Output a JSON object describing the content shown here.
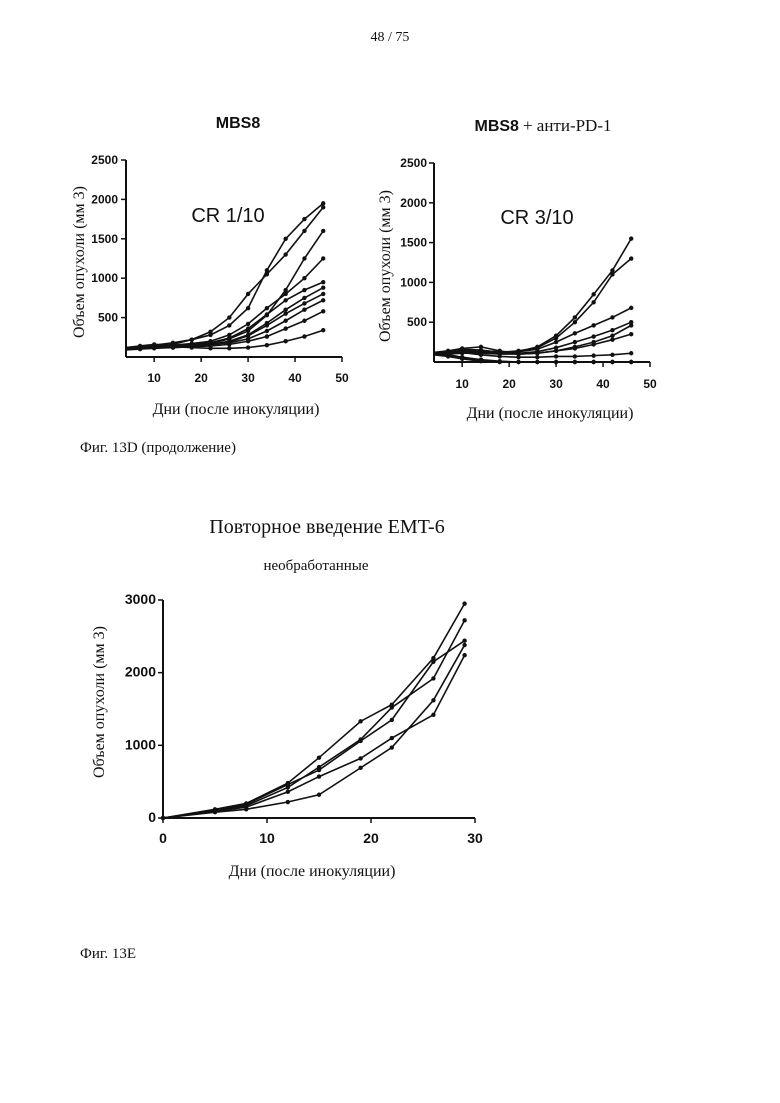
{
  "page_number": "48 / 75",
  "captions": {
    "fig_13d": "Фиг. 13D (продолжение)",
    "fig_13e": "Фиг. 13E"
  },
  "chart_data": [
    {
      "id": "mbs8",
      "type": "line",
      "title": "MBS8",
      "title_suffix": "",
      "annotation": "CR 1/10",
      "xlabel": "Дни (после инокуляции)",
      "ylabel": "Объем опухоли (мм 3)",
      "xlim": [
        4,
        50
      ],
      "ylim": [
        0,
        2500
      ],
      "xticks": [
        10,
        20,
        30,
        40,
        50
      ],
      "yticks": [
        500,
        1000,
        1500,
        2000,
        2500
      ],
      "x": [
        4,
        7,
        10,
        14,
        18,
        22,
        26,
        30,
        34,
        38,
        42,
        46
      ],
      "series": [
        {
          "values": [
            100,
            120,
            130,
            160,
            220,
            320,
            500,
            800,
            1050,
            1300,
            1600,
            1900
          ]
        },
        {
          "values": [
            100,
            110,
            120,
            130,
            150,
            170,
            230,
            330,
            530,
            850,
            1250,
            1600
          ]
        },
        {
          "values": [
            100,
            130,
            150,
            180,
            220,
            280,
            400,
            620,
            1100,
            1500,
            1750,
            1950
          ]
        },
        {
          "values": [
            110,
            120,
            140,
            150,
            170,
            200,
            280,
            420,
            620,
            800,
            1000,
            1250
          ]
        },
        {
          "values": [
            120,
            140,
            160,
            150,
            160,
            180,
            240,
            360,
            540,
            720,
            850,
            950
          ]
        },
        {
          "values": [
            100,
            110,
            130,
            140,
            150,
            160,
            200,
            280,
            430,
            600,
            750,
            880
          ]
        },
        {
          "values": [
            90,
            100,
            110,
            120,
            130,
            150,
            190,
            270,
            400,
            550,
            680,
            800
          ]
        },
        {
          "values": [
            110,
            120,
            130,
            140,
            150,
            160,
            180,
            230,
            330,
            460,
            600,
            720
          ]
        },
        {
          "values": [
            100,
            110,
            120,
            120,
            130,
            140,
            160,
            200,
            260,
            360,
            460,
            580
          ]
        },
        {
          "values": [
            120,
            130,
            140,
            130,
            120,
            110,
            110,
            120,
            150,
            200,
            260,
            340
          ]
        }
      ]
    },
    {
      "id": "mbs8-anti-pd1",
      "type": "line",
      "title": "MBS8",
      "title_suffix": "+ анти-PD-1",
      "annotation": "CR 3/10",
      "xlabel": "Дни (после инокуляции)",
      "ylabel": "Объем опухоли (мм 3)",
      "xlim": [
        4,
        50
      ],
      "ylim": [
        0,
        2500
      ],
      "xticks": [
        10,
        20,
        30,
        40,
        50
      ],
      "yticks": [
        500,
        1000,
        1500,
        2000,
        2500
      ],
      "x": [
        4,
        7,
        10,
        14,
        18,
        22,
        26,
        30,
        34,
        38,
        42,
        46
      ],
      "series": [
        {
          "values": [
            100,
            130,
            160,
            150,
            120,
            130,
            190,
            330,
            560,
            850,
            1150,
            1550
          ]
        },
        {
          "values": [
            100,
            120,
            140,
            130,
            120,
            140,
            180,
            300,
            500,
            750,
            1100,
            1300
          ]
        },
        {
          "values": [
            110,
            130,
            150,
            140,
            130,
            130,
            160,
            250,
            360,
            460,
            560,
            680
          ]
        },
        {
          "values": [
            100,
            110,
            130,
            120,
            110,
            110,
            130,
            180,
            250,
            320,
            400,
            500
          ]
        },
        {
          "values": [
            120,
            140,
            170,
            190,
            140,
            100,
            110,
            140,
            190,
            250,
            330,
            460
          ]
        },
        {
          "values": [
            90,
            100,
            110,
            110,
            100,
            100,
            110,
            140,
            170,
            220,
            280,
            350
          ]
        },
        {
          "values": [
            100,
            120,
            120,
            90,
            70,
            60,
            60,
            70,
            70,
            80,
            90,
            110
          ]
        },
        {
          "values": [
            110,
            90,
            60,
            30,
            10,
            0,
            0,
            0,
            0,
            0,
            0,
            0
          ]
        },
        {
          "values": [
            100,
            80,
            50,
            20,
            0,
            0,
            0,
            0,
            0,
            0,
            0,
            0
          ]
        },
        {
          "values": [
            90,
            70,
            40,
            10,
            0,
            0,
            0,
            0,
            0,
            0,
            0,
            0
          ]
        }
      ]
    },
    {
      "id": "emt6-rechallenge",
      "type": "line",
      "title": "Повторное введение EMT-6",
      "subtitle": "необработанные",
      "xlabel": "Дни (после инокуляции)",
      "ylabel": "Объем опухоли (мм 3)",
      "xlim": [
        0,
        30
      ],
      "ylim": [
        0,
        3000
      ],
      "xticks": [
        0,
        10,
        20,
        30
      ],
      "yticks": [
        0,
        1000,
        2000,
        3000
      ],
      "x": [
        0,
        5,
        8,
        12,
        15,
        19,
        22,
        26,
        29
      ],
      "series": [
        {
          "values": [
            0,
            120,
            200,
            480,
            830,
            1330,
            1560,
            2200,
            2950
          ]
        },
        {
          "values": [
            0,
            100,
            170,
            420,
            700,
            1080,
            1520,
            1920,
            2720
          ]
        },
        {
          "values": [
            0,
            110,
            190,
            460,
            660,
            1060,
            1350,
            2150,
            2440
          ]
        },
        {
          "values": [
            0,
            90,
            150,
            360,
            570,
            820,
            1100,
            1420,
            2240
          ]
        },
        {
          "values": [
            0,
            80,
            120,
            220,
            320,
            690,
            970,
            1620,
            2380
          ]
        }
      ]
    }
  ]
}
